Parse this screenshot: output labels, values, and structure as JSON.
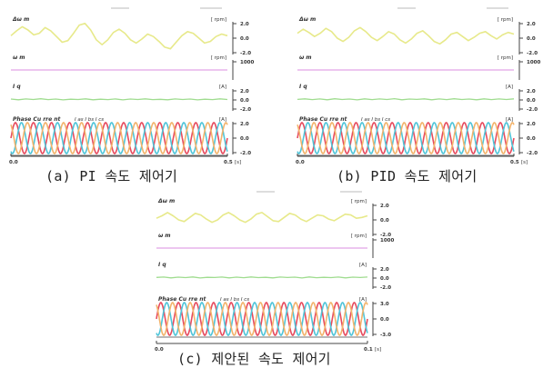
{
  "captions": {
    "a": "(a) PI 속도 제어기",
    "b": "(b) PID 속도 제어기",
    "c": "(c) 제안된 속도 제어기"
  },
  "chart_data": [
    {
      "id": "a",
      "type": "line",
      "panels": [
        {
          "label": "Δω m",
          "unit": "[ rpm]",
          "ticks": [
            "2.0",
            "0.0",
            "-2.0"
          ],
          "ylim": [
            -2,
            2
          ],
          "color": "#e7e98a",
          "values": [
            0.3,
            0.9,
            1.4,
            1.0,
            0.4,
            0.6,
            1.3,
            0.9,
            0.2,
            -0.5,
            -0.3,
            0.6,
            1.6,
            1.8,
            1.0,
            -0.2,
            -0.8,
            -0.2,
            0.7,
            1.1,
            0.6,
            -0.2,
            -0.6,
            -0.1,
            0.5,
            0.2,
            -0.4,
            -1.1,
            -1.3,
            -0.5,
            0.3,
            0.8,
            0.6,
            0.0,
            -0.6,
            -0.4,
            0.2,
            0.5,
            0.3
          ]
        },
        {
          "label": "ω m",
          "unit": "[ rpm]",
          "ticks": [
            "1000"
          ],
          "ylim": [
            0,
            2000
          ],
          "color": "#e2a3e8",
          "values": [
            1000,
            1000
          ]
        },
        {
          "label": "I q",
          "unit": "[A]",
          "ticks": [
            "2.0",
            "0.0",
            "-2.0"
          ],
          "ylim": [
            -10,
            10
          ],
          "color": "#9fdc8f",
          "values": [
            0.8,
            0.2,
            0.9,
            0.4,
            1.1,
            0.3,
            0.8,
            0.1,
            0.7,
            0.4,
            1.0,
            0.2,
            0.7,
            0.3,
            0.9,
            0.1,
            0.8,
            0.4,
            1.0,
            0.3,
            0.6,
            0.2,
            0.9,
            0.4,
            0.8,
            0.1,
            0.7,
            0.3,
            1.0,
            0.4
          ]
        },
        {
          "label": "Phase Cu rre nt",
          "sublabel": "I as I bs I cs",
          "unit": "[A]",
          "ticks": [
            "2.0",
            "0.0",
            "-2.0"
          ],
          "ylim": [
            -2.4,
            2.4
          ],
          "cycles": 12
        }
      ],
      "x_ticks": [
        "0.0",
        "0.5"
      ],
      "x_unit": "[s]"
    },
    {
      "id": "b",
      "type": "line",
      "panels": [
        {
          "label": "Δω m",
          "unit": "[ rpm]",
          "ticks": [
            "2.0",
            "0.0",
            "-2.0"
          ],
          "ylim": [
            -2,
            2
          ],
          "color": "#e7e98a",
          "values": [
            0.6,
            1.1,
            0.7,
            0.2,
            0.6,
            1.2,
            0.8,
            0.0,
            -0.4,
            0.1,
            0.9,
            1.3,
            0.8,
            0.1,
            -0.3,
            0.2,
            0.8,
            0.5,
            -0.2,
            -0.6,
            -0.1,
            0.6,
            0.9,
            0.3,
            -0.4,
            -0.7,
            -0.2,
            0.5,
            0.7,
            0.2,
            -0.3,
            0.1,
            0.6,
            0.8,
            0.3,
            -0.1,
            0.4,
            0.7,
            0.5
          ]
        },
        {
          "label": "ω m",
          "unit": "[ rpm]",
          "ticks": [
            "1000"
          ],
          "ylim": [
            0,
            2000
          ],
          "color": "#e2a3e8",
          "values": [
            1000,
            1000
          ]
        },
        {
          "label": "I q",
          "unit": "[A]",
          "ticks": [
            "2.0",
            "0.0",
            "-2.0"
          ],
          "ylim": [
            -10,
            10
          ],
          "color": "#9fdc8f",
          "values": [
            0.5,
            1.0,
            0.3,
            0.9,
            0.2,
            1.1,
            0.4,
            0.8,
            0.1,
            1.0,
            0.3,
            0.9,
            0.4,
            1.2,
            0.2,
            0.8,
            0.5,
            1.0,
            0.2,
            0.9,
            0.3,
            1.1,
            0.4,
            0.8,
            0.2,
            1.0,
            0.3,
            0.9,
            0.4,
            1.0
          ]
        },
        {
          "label": "Phase Cu rre nt",
          "sublabel": "I as I bs I cs",
          "unit": "[A]",
          "ticks": [
            "2.0",
            "0.0",
            "-2.0"
          ],
          "ylim": [
            -2.4,
            2.4
          ],
          "cycles": 12
        }
      ],
      "x_ticks": [
        "0.0",
        "0.5"
      ],
      "x_unit": "[s]"
    },
    {
      "id": "c",
      "type": "line",
      "panels": [
        {
          "label": "Δω m",
          "unit": "[ rpm]",
          "ticks": [
            "2.0",
            "0.0",
            "-2.0"
          ],
          "ylim": [
            -2,
            2
          ],
          "color": "#e7e98a",
          "values": [
            0.2,
            0.5,
            0.9,
            0.5,
            0.0,
            -0.2,
            0.3,
            0.8,
            0.6,
            0.1,
            -0.3,
            0.0,
            0.6,
            0.9,
            0.5,
            0.0,
            -0.3,
            0.1,
            0.7,
            0.9,
            0.4,
            -0.1,
            -0.2,
            0.3,
            0.8,
            0.6,
            0.1,
            -0.2,
            0.2,
            0.6,
            0.5,
            0.1,
            -0.1,
            0.3,
            0.7,
            0.6,
            0.2,
            0.3,
            0.5
          ]
        },
        {
          "label": "ω m",
          "unit": "[ rpm]",
          "ticks": [
            "1000"
          ],
          "ylim": [
            0,
            2000
          ],
          "color": "#e2a3e8",
          "values": [
            1000,
            1000
          ]
        },
        {
          "label": "I q",
          "unit": "[A]",
          "ticks": [
            "2.0",
            "0.0",
            "-2.0"
          ],
          "ylim": [
            -10,
            10
          ],
          "color": "#9fdc8f",
          "values": [
            0.6,
            0.9,
            0.2,
            0.8,
            0.4,
            1.0,
            0.1,
            0.7,
            0.5,
            0.9,
            0.2,
            0.8,
            0.3,
            1.0,
            0.4,
            0.7,
            0.2,
            0.9,
            0.5,
            0.8,
            0.1,
            1.0,
            0.3,
            0.7,
            0.4,
            0.9,
            0.2,
            0.8,
            0.5,
            0.9
          ]
        },
        {
          "label": "Phase Cu rre nt",
          "sublabel": "I as I bs I cs",
          "unit": "[A]",
          "ticks": [
            "3.0",
            "0.0",
            "-3.0"
          ],
          "ylim": [
            -2.4,
            2.4
          ],
          "cycles": 12
        }
      ],
      "x_ticks": [
        "0.0",
        "0.1"
      ],
      "x_unit": "[s]"
    }
  ],
  "colors": {
    "dw": "#e7e98a",
    "w": "#e2a3e8",
    "iq": "#9fdc8f",
    "phase_a": "#e64b5e",
    "phase_b": "#4fc4d8",
    "phase_c": "#f2b36b",
    "frame": "#444444"
  }
}
